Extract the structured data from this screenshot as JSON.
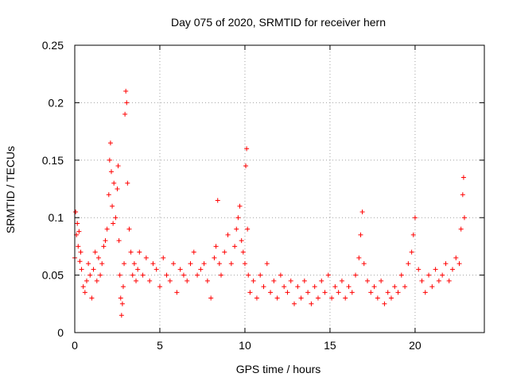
{
  "chart_data": {
    "type": "scatter",
    "title": "Day 075 of 2020, SRMTID for receiver hern",
    "xlabel": "GPS time / hours",
    "ylabel": "SRMTID / TECUs",
    "xlim": [
      0,
      24.07
    ],
    "ylim": [
      0,
      0.25
    ],
    "xticks": [
      0,
      5,
      10,
      15,
      20
    ],
    "yticks": [
      0,
      0.05,
      0.1,
      0.15,
      0.2,
      0.25
    ],
    "xtick_labels": [
      "0",
      "5",
      "10",
      "15",
      "20"
    ],
    "ytick_labels": [
      "0",
      "0.05",
      "0.1",
      "0.15",
      "0.2",
      "0.25"
    ],
    "grid": true,
    "marker": "+",
    "color": "#ff0000",
    "series": [
      {
        "name": "SRMTID",
        "x": [
          0.0,
          0.05,
          0.1,
          0.15,
          0.2,
          0.25,
          0.3,
          0.35,
          0.4,
          0.5,
          0.6,
          0.7,
          0.8,
          0.9,
          1.0,
          1.1,
          1.2,
          1.3,
          1.4,
          1.5,
          1.6,
          1.7,
          1.8,
          1.9,
          2.0,
          2.05,
          2.1,
          2.15,
          2.2,
          2.25,
          2.3,
          2.4,
          2.5,
          2.55,
          2.6,
          2.65,
          2.7,
          2.75,
          2.8,
          2.85,
          2.9,
          2.95,
          3.0,
          3.05,
          3.1,
          3.2,
          3.3,
          3.4,
          3.5,
          3.6,
          3.7,
          3.8,
          4.0,
          4.2,
          4.4,
          4.6,
          4.8,
          5.0,
          5.2,
          5.4,
          5.6,
          5.8,
          6.0,
          6.2,
          6.4,
          6.6,
          6.8,
          7.0,
          7.2,
          7.4,
          7.6,
          7.8,
          8.0,
          8.2,
          8.3,
          8.4,
          8.5,
          8.6,
          8.8,
          9.0,
          9.2,
          9.4,
          9.5,
          9.6,
          9.7,
          9.8,
          9.9,
          10.0,
          10.05,
          10.1,
          10.15,
          10.2,
          10.3,
          10.5,
          10.7,
          10.9,
          11.1,
          11.3,
          11.5,
          11.7,
          11.9,
          12.1,
          12.3,
          12.5,
          12.7,
          12.9,
          13.1,
          13.3,
          13.5,
          13.7,
          13.9,
          14.1,
          14.3,
          14.5,
          14.7,
          14.9,
          15.1,
          15.3,
          15.5,
          15.7,
          15.9,
          16.1,
          16.3,
          16.5,
          16.7,
          16.8,
          16.9,
          17.0,
          17.2,
          17.4,
          17.6,
          17.8,
          18.0,
          18.2,
          18.4,
          18.6,
          18.8,
          19.0,
          19.2,
          19.4,
          19.6,
          19.8,
          19.9,
          20.0,
          20.2,
          20.4,
          20.6,
          20.8,
          21.0,
          21.2,
          21.4,
          21.6,
          21.8,
          22.0,
          22.2,
          22.4,
          22.6,
          22.7,
          22.8,
          22.85,
          22.9
        ],
        "y": [
          0.065,
          0.105,
          0.085,
          0.095,
          0.075,
          0.088,
          0.062,
          0.07,
          0.055,
          0.04,
          0.035,
          0.045,
          0.06,
          0.05,
          0.03,
          0.055,
          0.07,
          0.045,
          0.065,
          0.05,
          0.06,
          0.075,
          0.08,
          0.09,
          0.12,
          0.15,
          0.165,
          0.14,
          0.11,
          0.095,
          0.13,
          0.1,
          0.125,
          0.145,
          0.08,
          0.05,
          0.03,
          0.015,
          0.025,
          0.04,
          0.06,
          0.19,
          0.21,
          0.2,
          0.13,
          0.09,
          0.07,
          0.05,
          0.06,
          0.045,
          0.055,
          0.07,
          0.05,
          0.065,
          0.045,
          0.06,
          0.055,
          0.04,
          0.065,
          0.05,
          0.045,
          0.06,
          0.035,
          0.055,
          0.05,
          0.045,
          0.06,
          0.07,
          0.05,
          0.055,
          0.06,
          0.045,
          0.03,
          0.065,
          0.075,
          0.115,
          0.06,
          0.05,
          0.07,
          0.085,
          0.06,
          0.075,
          0.09,
          0.1,
          0.11,
          0.08,
          0.07,
          0.06,
          0.145,
          0.16,
          0.09,
          0.05,
          0.035,
          0.045,
          0.03,
          0.05,
          0.04,
          0.06,
          0.035,
          0.045,
          0.03,
          0.05,
          0.04,
          0.035,
          0.045,
          0.025,
          0.04,
          0.03,
          0.045,
          0.035,
          0.025,
          0.04,
          0.03,
          0.045,
          0.035,
          0.05,
          0.03,
          0.04,
          0.035,
          0.045,
          0.03,
          0.04,
          0.035,
          0.05,
          0.065,
          0.085,
          0.105,
          0.06,
          0.045,
          0.035,
          0.04,
          0.03,
          0.045,
          0.025,
          0.035,
          0.03,
          0.04,
          0.035,
          0.05,
          0.04,
          0.06,
          0.07,
          0.085,
          0.1,
          0.055,
          0.045,
          0.035,
          0.05,
          0.04,
          0.055,
          0.045,
          0.05,
          0.06,
          0.045,
          0.055,
          0.065,
          0.06,
          0.09,
          0.12,
          0.135,
          0.1
        ]
      }
    ]
  }
}
